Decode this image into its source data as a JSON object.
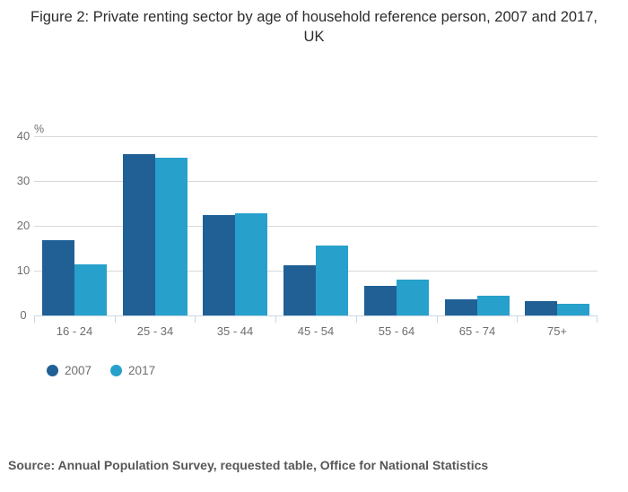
{
  "figure": {
    "title": "Figure 2: Private renting sector by age of household reference person, 2007 and 2017, UK",
    "source": "Source: Annual Population Survey, requested table, Office for National Statistics"
  },
  "chart_data": {
    "type": "bar",
    "title": "Figure 2: Private renting sector by age of household reference person, 2007 and 2017, UK",
    "xlabel": "",
    "ylabel": "%",
    "ylim": [
      0,
      40
    ],
    "yticks": [
      0,
      10,
      20,
      30,
      40
    ],
    "grid": "horizontal",
    "legend_position": "bottom-left",
    "categories": [
      "16 - 24",
      "25 - 34",
      "35 - 44",
      "45 - 54",
      "55 - 64",
      "65 - 74",
      "75+"
    ],
    "series": [
      {
        "name": "2007",
        "color": "#206095",
        "values": [
          16.8,
          36.0,
          22.4,
          11.2,
          6.6,
          3.5,
          3.3
        ]
      },
      {
        "name": "2017",
        "color": "#28a0cc",
        "values": [
          11.4,
          35.2,
          22.7,
          15.5,
          7.9,
          4.3,
          2.5
        ]
      }
    ]
  },
  "colors": {
    "series_2007": "#206095",
    "series_2017": "#28a0cc",
    "gridline": "#d9d9d9",
    "axis_line": "#c9d7e3",
    "tick_text": "#6e6e70",
    "title_text": "#2c2c2c",
    "source_text": "#58585a"
  }
}
